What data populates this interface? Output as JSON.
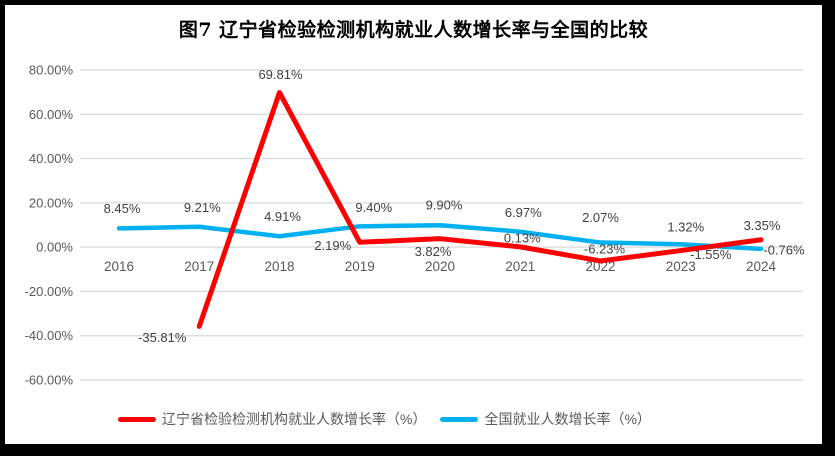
{
  "title": "图7  辽宁省检验检测机构就业人数增长率与全国的比较",
  "chart_data": {
    "type": "line",
    "x": [
      "2016",
      "2017",
      "2018",
      "2019",
      "2020",
      "2021",
      "2022",
      "2023",
      "2024"
    ],
    "series": [
      {
        "name": "辽宁省检验检测机构就业人数增长率（%）",
        "color": "#FF0000",
        "values": [
          null,
          -35.81,
          69.81,
          2.19,
          3.82,
          0.13,
          -6.23,
          -1.55,
          3.35
        ],
        "labels": [
          "",
          "-35.81%",
          "69.81%",
          "2.19%",
          "3.82%",
          "0.13%",
          "-6.23%",
          "-1.55%",
          "3.35%"
        ]
      },
      {
        "name": "全国就业人数增长率（%）",
        "color": "#00B0F0",
        "values": [
          8.45,
          9.21,
          4.91,
          9.4,
          9.9,
          6.97,
          2.07,
          1.32,
          -0.76
        ],
        "labels": [
          "8.45%",
          "9.21%",
          "4.91%",
          "9.40%",
          "9.90%",
          "6.97%",
          "2.07%",
          "1.32%",
          "-0.76%"
        ]
      }
    ],
    "ylim": [
      -60,
      80
    ],
    "ytick_step": 20,
    "ytick_labels": [
      "80.00%",
      "60.00%",
      "40.00%",
      "20.00%",
      "0.00%",
      "-20.00%",
      "-40.00%",
      "-60.00%"
    ],
    "xlabel": "",
    "ylabel": "",
    "grid": true,
    "legend_position": "bottom"
  },
  "style": {
    "grid_color": "#D9D9D9",
    "axis_text_color": "#595959",
    "label_text_color": "#404040",
    "frame_color": "#000000",
    "background": "#FFFFFF"
  }
}
